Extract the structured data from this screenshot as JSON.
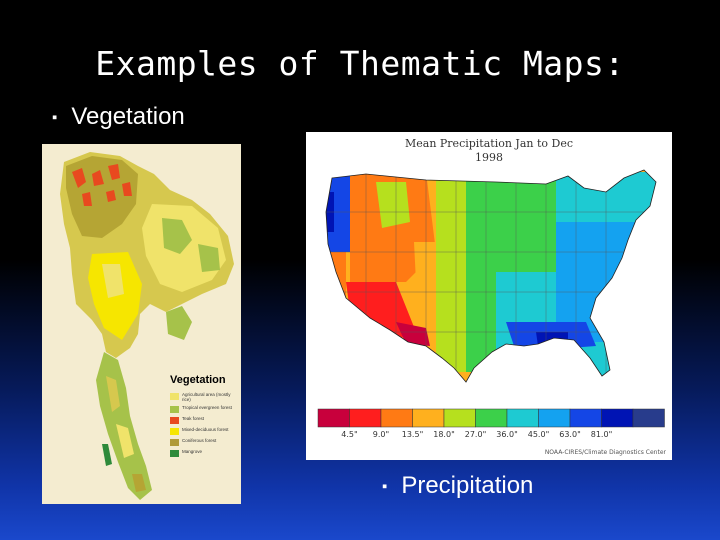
{
  "slide": {
    "title": "Examples of Thematic Maps:",
    "bullets": [
      "Vegetation",
      "Precipitation"
    ]
  },
  "vegetation_map": {
    "legend_title": "Vegetation",
    "legend_items": [
      {
        "label": "Agricultural area (mostly rice)",
        "color": "#f0e36a"
      },
      {
        "label": "Tropical evergreen forest",
        "color": "#a6c24a"
      },
      {
        "label": "Teak forest",
        "color": "#e8491f"
      },
      {
        "label": "Mixed-deciduous forest",
        "color": "#f6e600"
      },
      {
        "label": "Coniferous forest",
        "color": "#b09a38"
      },
      {
        "label": "Mangrove",
        "color": "#2e8a3a"
      }
    ]
  },
  "precipitation_map": {
    "title": "Mean Precipitation Jan to Dec",
    "year": "1998",
    "scale_colors": [
      "#c8003c",
      "#ff1e1e",
      "#ff7a14",
      "#ffb01e",
      "#b6e01e",
      "#3cd04a",
      "#1ecad2",
      "#14a2f0",
      "#1446e6",
      "#0014b4",
      "#283c8c"
    ],
    "scale_labels": [
      "4.5\"",
      "9.0\"",
      "13.5\"",
      "18.0\"",
      "27.0\"",
      "36.0\"",
      "45.0\"",
      "63.0\"",
      "81.0\""
    ],
    "credit": "NOAA-CIRES/Climate Diagnostics Center"
  }
}
